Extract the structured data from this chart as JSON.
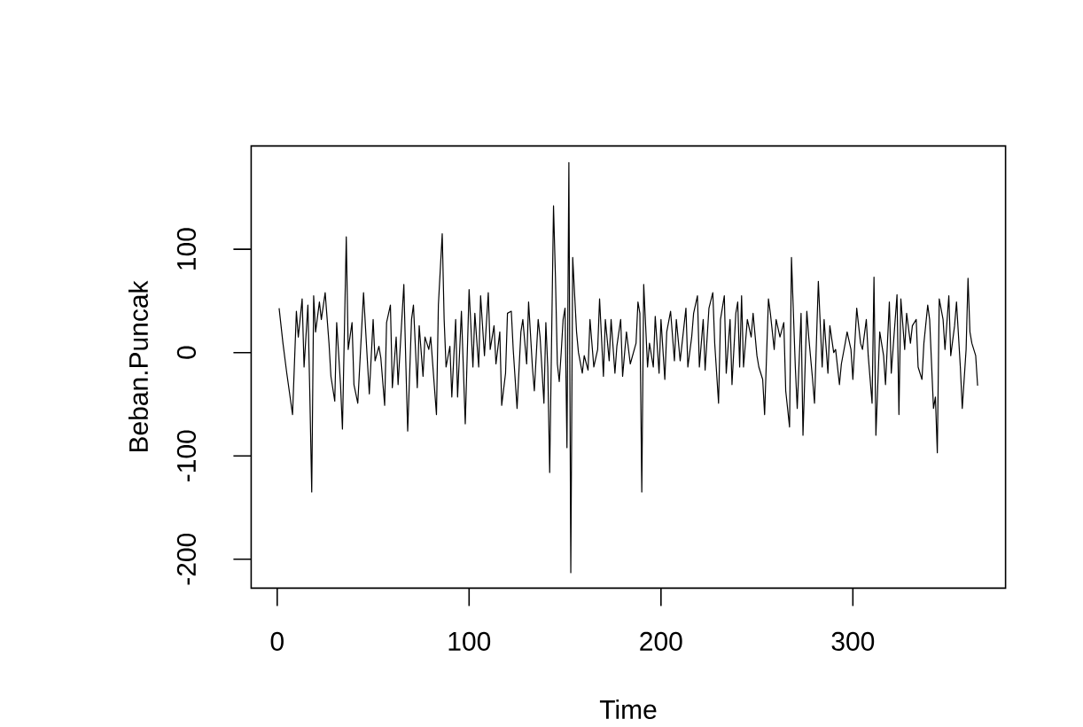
{
  "chart_data": {
    "type": "line",
    "xlabel": "Time",
    "ylabel": "Beban.Puncak",
    "xlim": [
      -13.56,
      379.56
    ],
    "ylim": [
      -228,
      200
    ],
    "xticks": [
      0,
      100,
      200,
      300
    ],
    "yticks": [
      -200,
      -100,
      0,
      100
    ],
    "marker": "none",
    "line_style": "solid",
    "color": "#000000",
    "x": [
      1,
      3,
      5,
      8,
      10,
      11,
      13,
      14,
      16,
      17,
      18,
      19,
      20,
      22,
      23,
      25,
      27,
      28,
      30,
      31,
      33,
      34,
      36,
      37,
      39,
      40,
      42,
      45,
      47,
      48,
      50,
      51,
      53,
      54,
      56,
      57,
      59,
      60,
      62,
      63,
      66,
      67,
      68,
      70,
      71,
      73,
      74,
      76,
      77,
      79,
      80,
      83,
      84,
      86,
      87,
      88,
      90,
      91,
      93,
      94,
      96,
      98,
      100,
      102,
      103,
      105,
      106,
      108,
      110,
      111,
      113,
      114,
      116,
      117,
      119,
      120,
      122,
      123,
      125,
      127,
      128,
      130,
      131,
      133,
      134,
      136,
      137,
      139,
      140,
      141,
      142,
      144,
      145,
      146,
      147,
      148,
      149,
      150,
      151,
      152,
      153,
      154,
      156,
      157,
      159,
      160,
      162,
      163,
      165,
      167,
      168,
      170,
      171,
      173,
      174,
      176,
      177,
      179,
      180,
      182,
      184,
      187,
      188,
      189,
      190,
      191,
      193,
      194,
      196,
      197,
      199,
      200,
      202,
      203,
      205,
      207,
      208,
      210,
      211,
      213,
      214,
      216,
      217,
      219,
      220,
      222,
      223,
      225,
      227,
      228,
      230,
      231,
      233,
      234,
      236,
      237,
      239,
      240,
      241,
      242,
      243,
      245,
      247,
      248,
      250,
      251,
      253,
      254,
      256,
      257,
      259,
      260,
      262,
      264,
      265,
      267,
      268,
      270,
      271,
      273,
      274,
      276,
      277,
      279,
      280,
      282,
      284,
      285,
      287,
      288,
      290,
      291,
      293,
      294,
      296,
      297,
      299,
      300,
      302,
      304,
      305,
      307,
      308,
      310,
      311,
      312,
      314,
      316,
      317,
      319,
      320,
      323,
      324,
      325,
      327,
      328,
      330,
      331,
      333,
      334,
      336,
      337,
      339,
      340,
      342,
      343,
      344,
      345,
      347,
      348,
      350,
      351,
      353,
      354,
      356,
      357,
      359,
      360,
      361,
      362,
      364,
      365
    ],
    "values": [
      43,
      9,
      -20,
      -60,
      40,
      15,
      52,
      -14,
      46,
      -40,
      -135,
      55,
      20,
      49,
      32,
      58,
      9,
      -23,
      -47,
      29,
      -31,
      -74,
      112,
      3,
      29,
      -31,
      -49,
      58,
      -8,
      -40,
      32,
      -8,
      6,
      -5,
      -51,
      29,
      46,
      -34,
      15,
      -31,
      66,
      -8,
      -76,
      32,
      46,
      -34,
      26,
      -23,
      15,
      3,
      15,
      -60,
      46,
      115,
      32,
      -14,
      6,
      -43,
      32,
      -43,
      40,
      -69,
      61,
      -14,
      38,
      -14,
      55,
      -3,
      58,
      3,
      26,
      -11,
      20,
      -51,
      -20,
      38,
      40,
      3,
      -54,
      20,
      32,
      -11,
      49,
      -14,
      -37,
      32,
      15,
      -49,
      29,
      -14,
      -116,
      142,
      73,
      -11,
      -28,
      0,
      32,
      43,
      -92,
      184,
      -213,
      92,
      20,
      0,
      -20,
      -3,
      -17,
      32,
      -14,
      3,
      52,
      -23,
      32,
      -8,
      32,
      -20,
      6,
      32,
      -23,
      20,
      -11,
      9,
      49,
      38,
      -135,
      66,
      -14,
      9,
      -14,
      35,
      -20,
      32,
      -26,
      20,
      40,
      -8,
      32,
      -8,
      9,
      43,
      -14,
      15,
      38,
      55,
      -14,
      32,
      -17,
      43,
      58,
      9,
      -49,
      32,
      55,
      -20,
      32,
      -31,
      38,
      49,
      -14,
      55,
      -14,
      32,
      15,
      38,
      -3,
      -14,
      -26,
      -60,
      52,
      38,
      3,
      32,
      15,
      29,
      -37,
      -72,
      92,
      -14,
      -54,
      38,
      -80,
      40,
      15,
      -26,
      -49,
      69,
      -14,
      32,
      -20,
      26,
      0,
      3,
      -31,
      -11,
      9,
      20,
      3,
      -26,
      43,
      9,
      3,
      32,
      -3,
      -49,
      73,
      -80,
      20,
      -3,
      -31,
      49,
      -20,
      56,
      -60,
      52,
      3,
      38,
      9,
      26,
      32,
      -14,
      -26,
      9,
      46,
      32,
      -54,
      -43,
      -97,
      52,
      32,
      3,
      55,
      -3,
      26,
      49,
      -14,
      -54,
      3,
      72,
      20,
      9,
      -3,
      -32
    ]
  }
}
